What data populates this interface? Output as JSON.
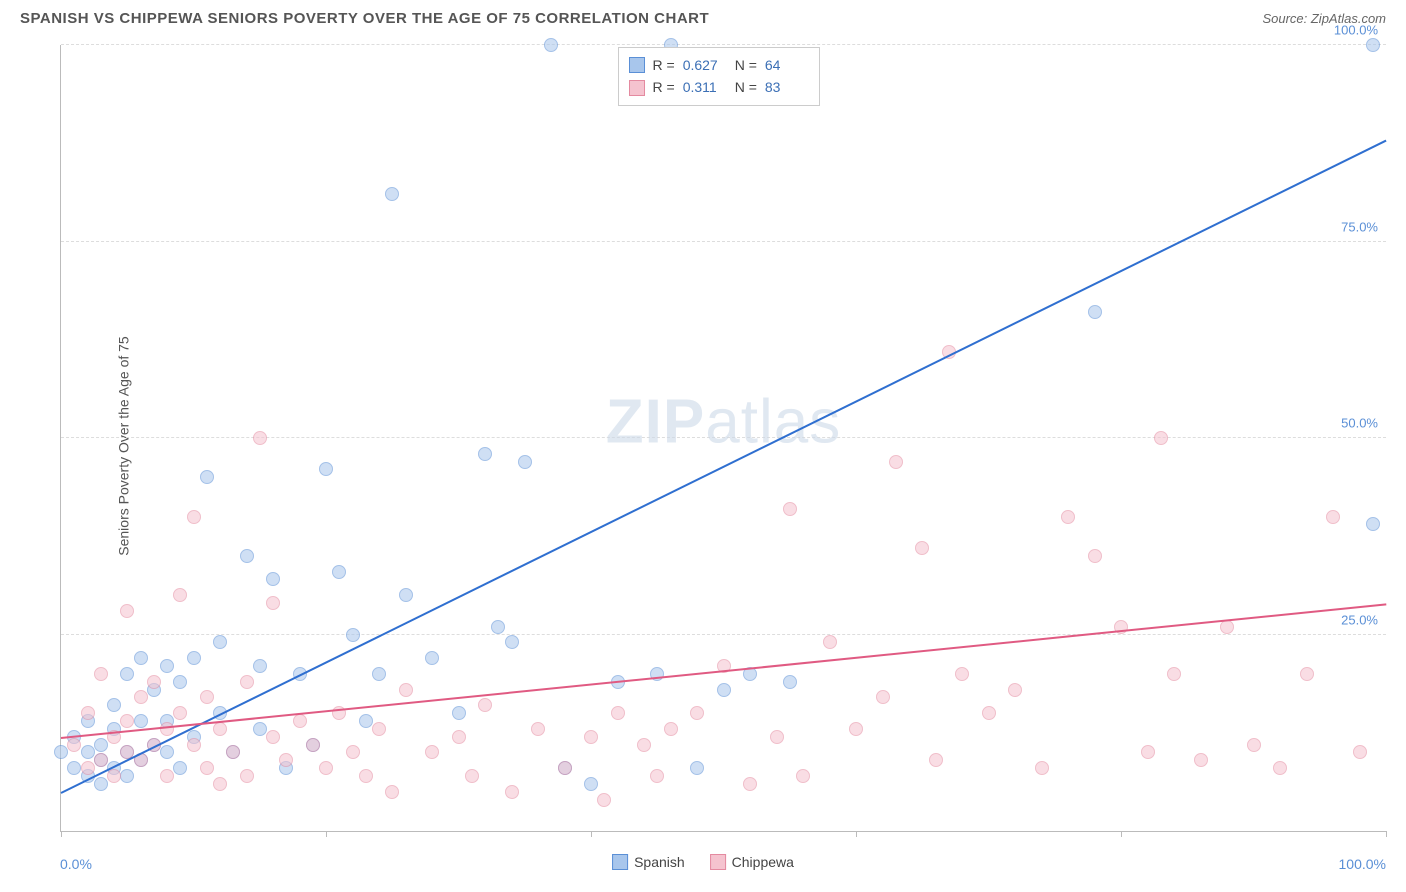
{
  "title": "SPANISH VS CHIPPEWA SENIORS POVERTY OVER THE AGE OF 75 CORRELATION CHART",
  "source": "Source: ZipAtlas.com",
  "ylabel": "Seniors Poverty Over the Age of 75",
  "watermark_bold": "ZIP",
  "watermark_rest": "atlas",
  "chart": {
    "type": "scatter",
    "xlim": [
      0,
      100
    ],
    "ylim": [
      0,
      100
    ],
    "y_ticks": [
      25,
      50,
      75,
      100
    ],
    "y_tick_labels": [
      "25.0%",
      "50.0%",
      "75.0%",
      "100.0%"
    ],
    "x_ticks": [
      0,
      20,
      40,
      60,
      80,
      100
    ],
    "x_min_label": "0.0%",
    "x_max_label": "100.0%",
    "background_color": "#ffffff",
    "grid_color": "#dddddd",
    "axis_color": "#bbbbbb",
    "tick_label_color": "#5a8fd6",
    "point_radius": 7,
    "point_opacity": 0.55,
    "trendline_width": 2
  },
  "series": [
    {
      "name": "Spanish",
      "fill_color": "#a8c6ec",
      "stroke_color": "#5a8fd6",
      "line_color": "#2f6fd0",
      "R": "0.627",
      "N": "64",
      "trend": {
        "x1": 0,
        "y1": 5,
        "x2": 100,
        "y2": 88
      },
      "points": [
        [
          0,
          10
        ],
        [
          1,
          8
        ],
        [
          1,
          12
        ],
        [
          2,
          7
        ],
        [
          2,
          14
        ],
        [
          2,
          10
        ],
        [
          3,
          6
        ],
        [
          3,
          11
        ],
        [
          3,
          9
        ],
        [
          4,
          13
        ],
        [
          4,
          8
        ],
        [
          4,
          16
        ],
        [
          5,
          10
        ],
        [
          5,
          7
        ],
        [
          5,
          20
        ],
        [
          6,
          14
        ],
        [
          6,
          9
        ],
        [
          6,
          22
        ],
        [
          7,
          11
        ],
        [
          7,
          18
        ],
        [
          8,
          10
        ],
        [
          8,
          21
        ],
        [
          8,
          14
        ],
        [
          9,
          19
        ],
        [
          9,
          8
        ],
        [
          10,
          22
        ],
        [
          10,
          12
        ],
        [
          11,
          45
        ],
        [
          12,
          15
        ],
        [
          12,
          24
        ],
        [
          13,
          10
        ],
        [
          14,
          35
        ],
        [
          15,
          21
        ],
        [
          15,
          13
        ],
        [
          16,
          32
        ],
        [
          17,
          8
        ],
        [
          18,
          20
        ],
        [
          19,
          11
        ],
        [
          20,
          46
        ],
        [
          21,
          33
        ],
        [
          22,
          25
        ],
        [
          23,
          14
        ],
        [
          24,
          20
        ],
        [
          25,
          81
        ],
        [
          26,
          30
        ],
        [
          28,
          22
        ],
        [
          30,
          15
        ],
        [
          32,
          48
        ],
        [
          33,
          26
        ],
        [
          34,
          24
        ],
        [
          35,
          47
        ],
        [
          37,
          100
        ],
        [
          38,
          8
        ],
        [
          40,
          6
        ],
        [
          42,
          19
        ],
        [
          45,
          20
        ],
        [
          46,
          100
        ],
        [
          48,
          8
        ],
        [
          50,
          18
        ],
        [
          52,
          20
        ],
        [
          55,
          19
        ],
        [
          78,
          66
        ],
        [
          99,
          100
        ],
        [
          99,
          39
        ]
      ]
    },
    {
      "name": "Chippewa",
      "fill_color": "#f5c3cf",
      "stroke_color": "#e48aa0",
      "line_color": "#e05a82",
      "R": "0.311",
      "N": "83",
      "trend": {
        "x1": 0,
        "y1": 12,
        "x2": 100,
        "y2": 29
      },
      "points": [
        [
          1,
          11
        ],
        [
          2,
          15
        ],
        [
          2,
          8
        ],
        [
          3,
          9
        ],
        [
          3,
          20
        ],
        [
          4,
          12
        ],
        [
          4,
          7
        ],
        [
          5,
          10
        ],
        [
          5,
          14
        ],
        [
          5,
          28
        ],
        [
          6,
          17
        ],
        [
          6,
          9
        ],
        [
          7,
          11
        ],
        [
          7,
          19
        ],
        [
          8,
          13
        ],
        [
          8,
          7
        ],
        [
          9,
          30
        ],
        [
          9,
          15
        ],
        [
          10,
          11
        ],
        [
          10,
          40
        ],
        [
          11,
          17
        ],
        [
          11,
          8
        ],
        [
          12,
          13
        ],
        [
          12,
          6
        ],
        [
          13,
          10
        ],
        [
          14,
          19
        ],
        [
          14,
          7
        ],
        [
          15,
          50
        ],
        [
          16,
          12
        ],
        [
          16,
          29
        ],
        [
          17,
          9
        ],
        [
          18,
          14
        ],
        [
          19,
          11
        ],
        [
          20,
          8
        ],
        [
          21,
          15
        ],
        [
          22,
          10
        ],
        [
          23,
          7
        ],
        [
          24,
          13
        ],
        [
          25,
          5
        ],
        [
          26,
          18
        ],
        [
          28,
          10
        ],
        [
          30,
          12
        ],
        [
          31,
          7
        ],
        [
          32,
          16
        ],
        [
          34,
          5
        ],
        [
          36,
          13
        ],
        [
          38,
          8
        ],
        [
          40,
          12
        ],
        [
          41,
          4
        ],
        [
          42,
          15
        ],
        [
          44,
          11
        ],
        [
          45,
          7
        ],
        [
          46,
          13
        ],
        [
          48,
          15
        ],
        [
          50,
          21
        ],
        [
          52,
          6
        ],
        [
          54,
          12
        ],
        [
          55,
          41
        ],
        [
          56,
          7
        ],
        [
          58,
          24
        ],
        [
          60,
          13
        ],
        [
          62,
          17
        ],
        [
          63,
          47
        ],
        [
          65,
          36
        ],
        [
          66,
          9
        ],
        [
          67,
          61
        ],
        [
          68,
          20
        ],
        [
          70,
          15
        ],
        [
          72,
          18
        ],
        [
          74,
          8
        ],
        [
          76,
          40
        ],
        [
          78,
          35
        ],
        [
          80,
          26
        ],
        [
          82,
          10
        ],
        [
          83,
          50
        ],
        [
          84,
          20
        ],
        [
          86,
          9
        ],
        [
          88,
          26
        ],
        [
          90,
          11
        ],
        [
          92,
          8
        ],
        [
          94,
          20
        ],
        [
          96,
          40
        ],
        [
          98,
          10
        ]
      ]
    }
  ],
  "stats_box": {
    "rows": [
      {
        "r_label": "R =",
        "r_val": "0.627",
        "n_label": "N =",
        "n_val": "64"
      },
      {
        "r_label": "R =",
        "r_val": "0.311",
        "n_label": "N =",
        "n_val": "83"
      }
    ]
  },
  "legend": {
    "items": [
      {
        "label": "Spanish"
      },
      {
        "label": "Chippewa"
      }
    ]
  }
}
